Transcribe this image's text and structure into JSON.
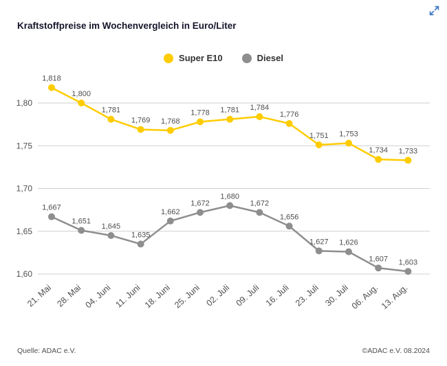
{
  "page": {
    "title": "Kraftstoffpreise im Wochenvergleich in Euro/Liter",
    "footer_left": "Quelle: ADAC e.V.",
    "footer_right": "©ADAC e.V. 08.2024"
  },
  "legend": [
    {
      "label": "Super E10",
      "color": "#FFCC00"
    },
    {
      "label": "Diesel",
      "color": "#8E8E8E"
    }
  ],
  "icons": {
    "expand_icon_color": "#3F7AC6"
  },
  "chart_data": {
    "type": "line",
    "title": "Kraftstoffpreise im Wochenvergleich in Euro/Liter",
    "xlabel": "",
    "ylabel": "Euro/Liter",
    "categories": [
      "21. Mai",
      "28. Mai",
      "04. Juni",
      "11. Juni",
      "18. Juni",
      "25. Juni",
      "02. Juli",
      "09. Juli",
      "16. Juli",
      "23. Juli",
      "30. Juli",
      "06. Aug.",
      "13. Aug."
    ],
    "series": [
      {
        "name": "Super E10",
        "color": "#FFCC00",
        "values": [
          1.818,
          1.8,
          1.781,
          1.769,
          1.768,
          1.778,
          1.781,
          1.784,
          1.776,
          1.751,
          1.753,
          1.734,
          1.733
        ]
      },
      {
        "name": "Diesel",
        "color": "#8E8E8E",
        "values": [
          1.667,
          1.651,
          1.645,
          1.635,
          1.662,
          1.672,
          1.68,
          1.672,
          1.656,
          1.627,
          1.626,
          1.607,
          1.603
        ]
      }
    ],
    "ylim": [
      1.6,
      1.85
    ],
    "yticks": [
      1.6,
      1.65,
      1.7,
      1.75,
      1.8
    ],
    "grid": true,
    "legend_position": "top",
    "decimal_separator": ",",
    "value_label_decimals": 3,
    "tick_label_decimals": 2
  }
}
